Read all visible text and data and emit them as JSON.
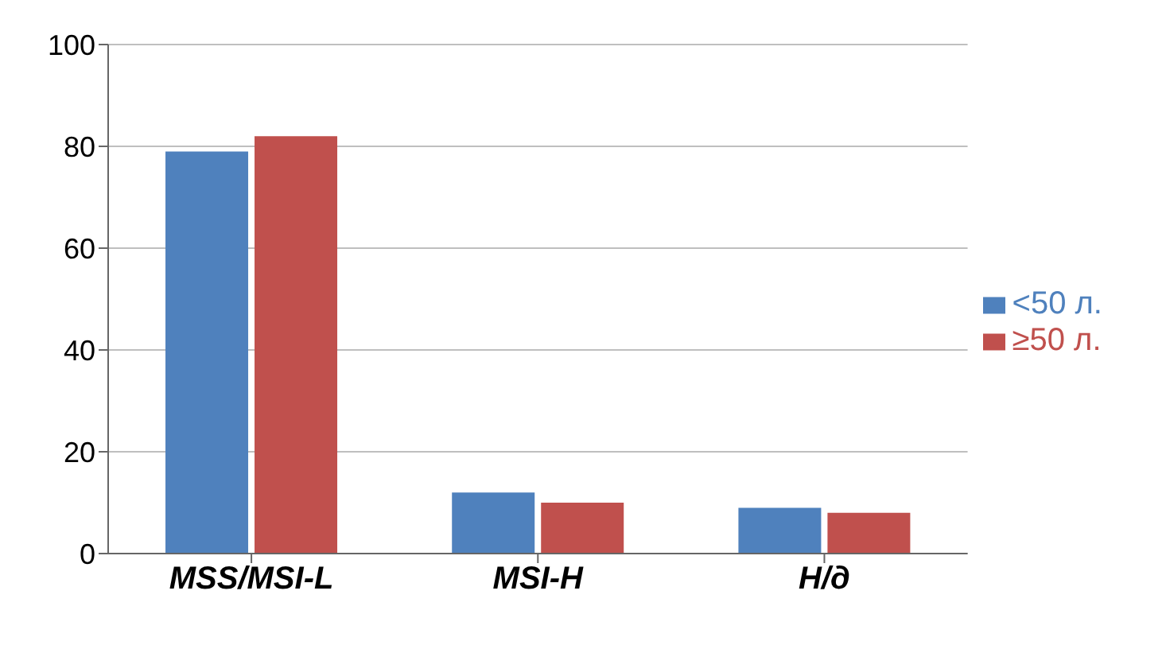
{
  "chart_data": {
    "type": "bar",
    "categories": [
      "MSS/MSI-L",
      "MSI-H",
      "Н/д"
    ],
    "series": [
      {
        "name": "<50 л.",
        "color": "#4f81bd",
        "values": [
          79,
          12,
          9
        ]
      },
      {
        "name": "≥50 л.",
        "color": "#c0504d",
        "values": [
          82,
          10,
          8
        ]
      }
    ],
    "ylim": [
      0,
      100
    ],
    "yticks": [
      0,
      20,
      40,
      60,
      80,
      100
    ],
    "grid": "y",
    "legend": "right"
  }
}
